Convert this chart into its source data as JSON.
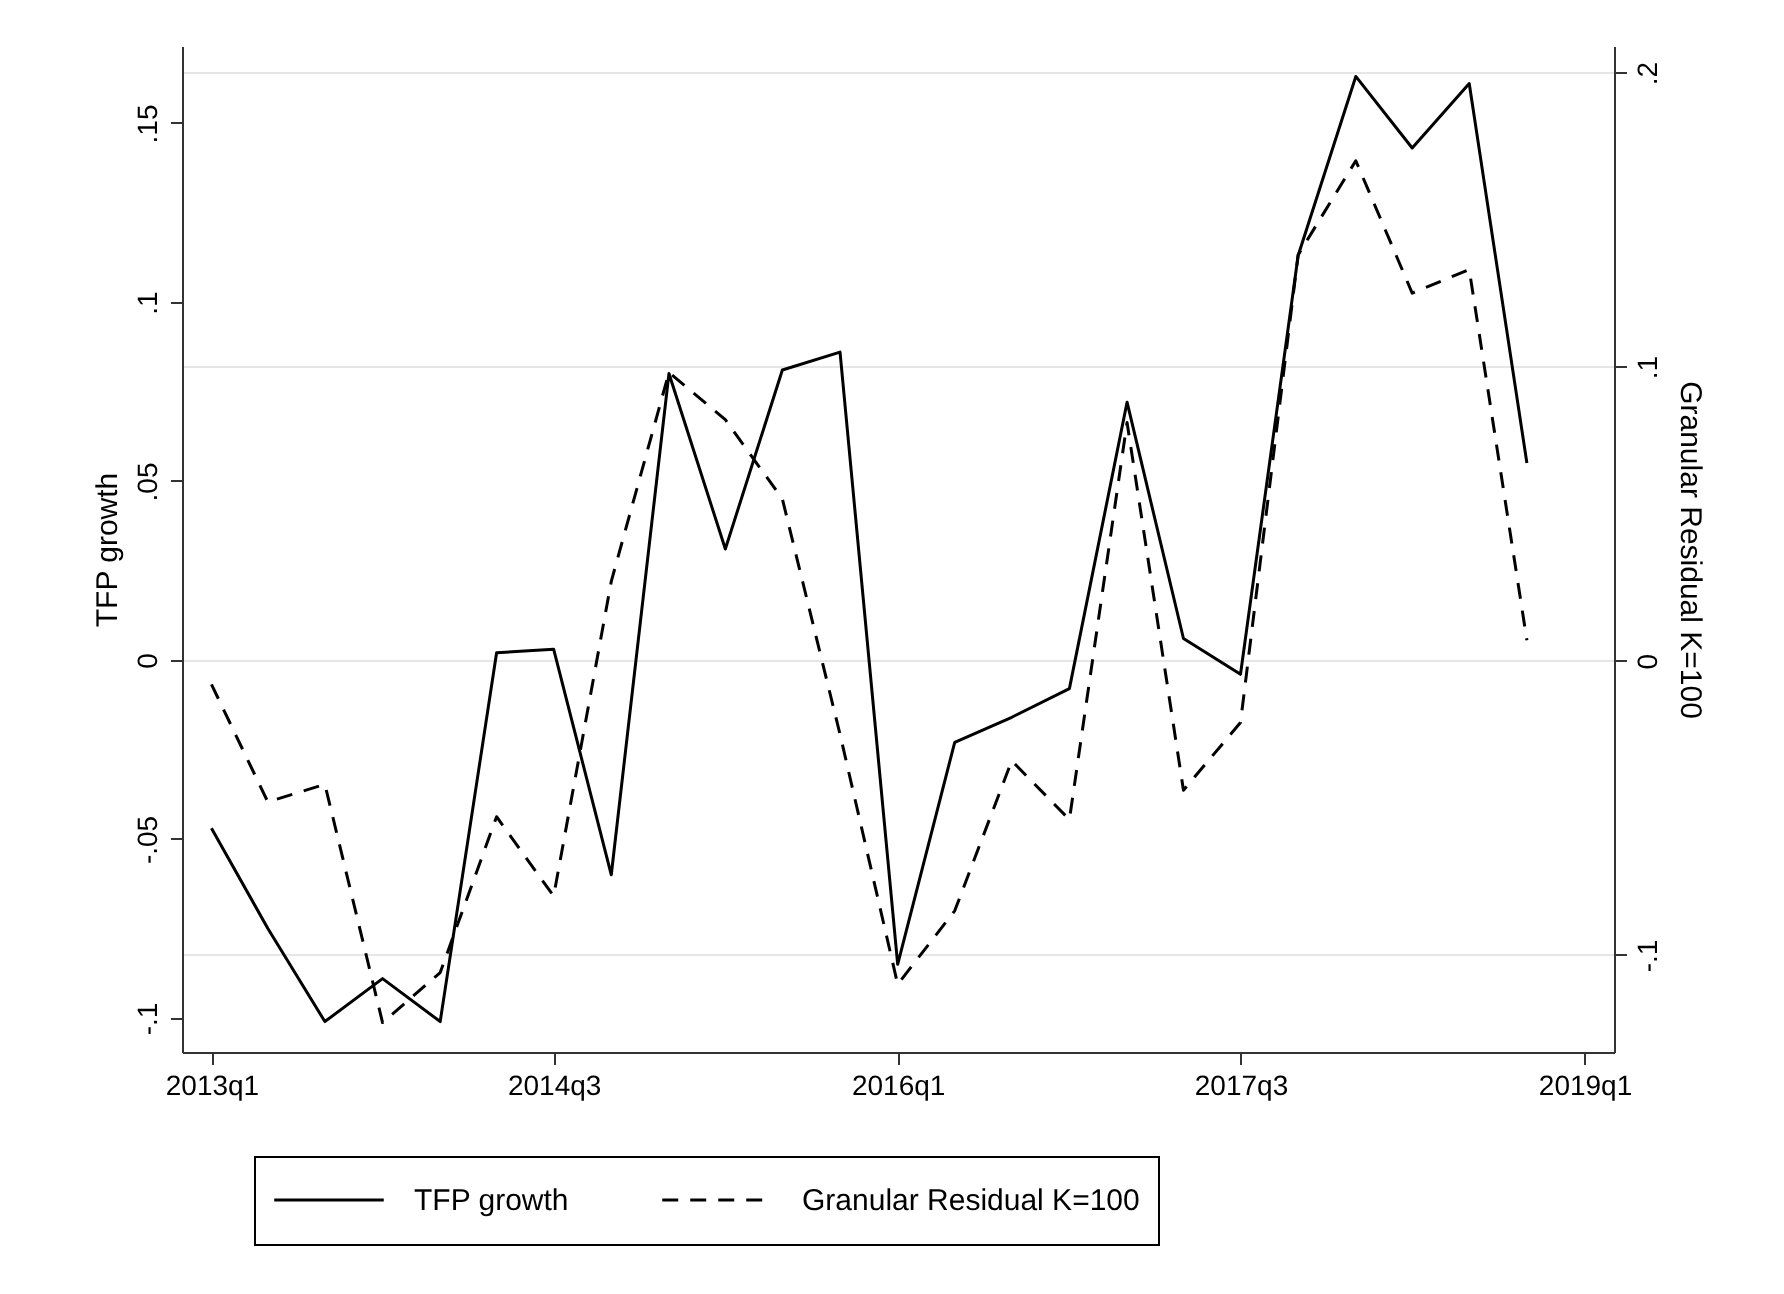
{
  "chart_data": {
    "type": "line",
    "ylabel": "TFP growth",
    "y2label": "Granular Residual K=100",
    "x": [
      "2013-01",
      "2013-04",
      "2013-07",
      "2013-10",
      "2014-01",
      "2014-04",
      "2014-07",
      "2014-10",
      "2015-01",
      "2015-04",
      "2015-07",
      "2015-10",
      "2016-01",
      "2016-04",
      "2016-07",
      "2016-10",
      "2017-01",
      "2017-04",
      "2017-07",
      "2017-10",
      "2018-01",
      "2018-04",
      "2018-07",
      "2018-10"
    ],
    "series": [
      {
        "name": "TFP growth",
        "color": "#000000",
        "line_style": "solid",
        "values": [
          -0.047,
          -0.075,
          -0.101,
          -0.089,
          -0.101,
          0.002,
          0.003,
          -0.06,
          0.08,
          0.031,
          0.081,
          0.086,
          -0.085,
          -0.023,
          -0.016,
          -0.008,
          0.072,
          0.006,
          -0.004,
          0.113,
          0.163,
          0.143,
          0.161,
          0.055
        ]
      },
      {
        "name": "Granular Residual K=100",
        "color": "#000000",
        "line_style": "dashed",
        "axis": "y2",
        "values": [
          -0.008,
          -0.048,
          -0.042,
          -0.123,
          -0.106,
          -0.053,
          -0.08,
          0.027,
          0.098,
          0.082,
          0.055,
          -0.025,
          -0.11,
          -0.085,
          -0.034,
          -0.054,
          0.081,
          -0.044,
          -0.021,
          0.138,
          0.17,
          0.125,
          0.133,
          0.007
        ]
      }
    ],
    "xlim": [
      "2012-11-15",
      "2019-02-17"
    ],
    "xticks": [
      {
        "value": "2013-01",
        "label": "2013q1"
      },
      {
        "value": "2014-07",
        "label": "2014q3"
      },
      {
        "value": "2016-01",
        "label": "2016q1"
      },
      {
        "value": "2017-07",
        "label": "2017q3"
      },
      {
        "value": "2019-01",
        "label": "2019q1"
      }
    ],
    "ylim": [
      -0.1095,
      0.1715
    ],
    "yticks": [
      {
        "value": -0.1,
        "label": "-.1"
      },
      {
        "value": -0.05,
        "label": "-.05"
      },
      0,
      {
        "value": 0.05,
        "label": ".05"
      },
      {
        "value": 0.1,
        "label": ".1"
      },
      {
        "value": 0.15,
        "label": ".15"
      }
    ],
    "y2lim": [
      -0.133,
      0.209
    ],
    "y2ticks": [
      {
        "value": -0.1,
        "label": "-.1"
      },
      0,
      {
        "value": 0.1,
        "label": ".1"
      },
      {
        "value": 0.2,
        "label": ".2"
      }
    ],
    "grid": "y2",
    "legend": "bottom"
  }
}
